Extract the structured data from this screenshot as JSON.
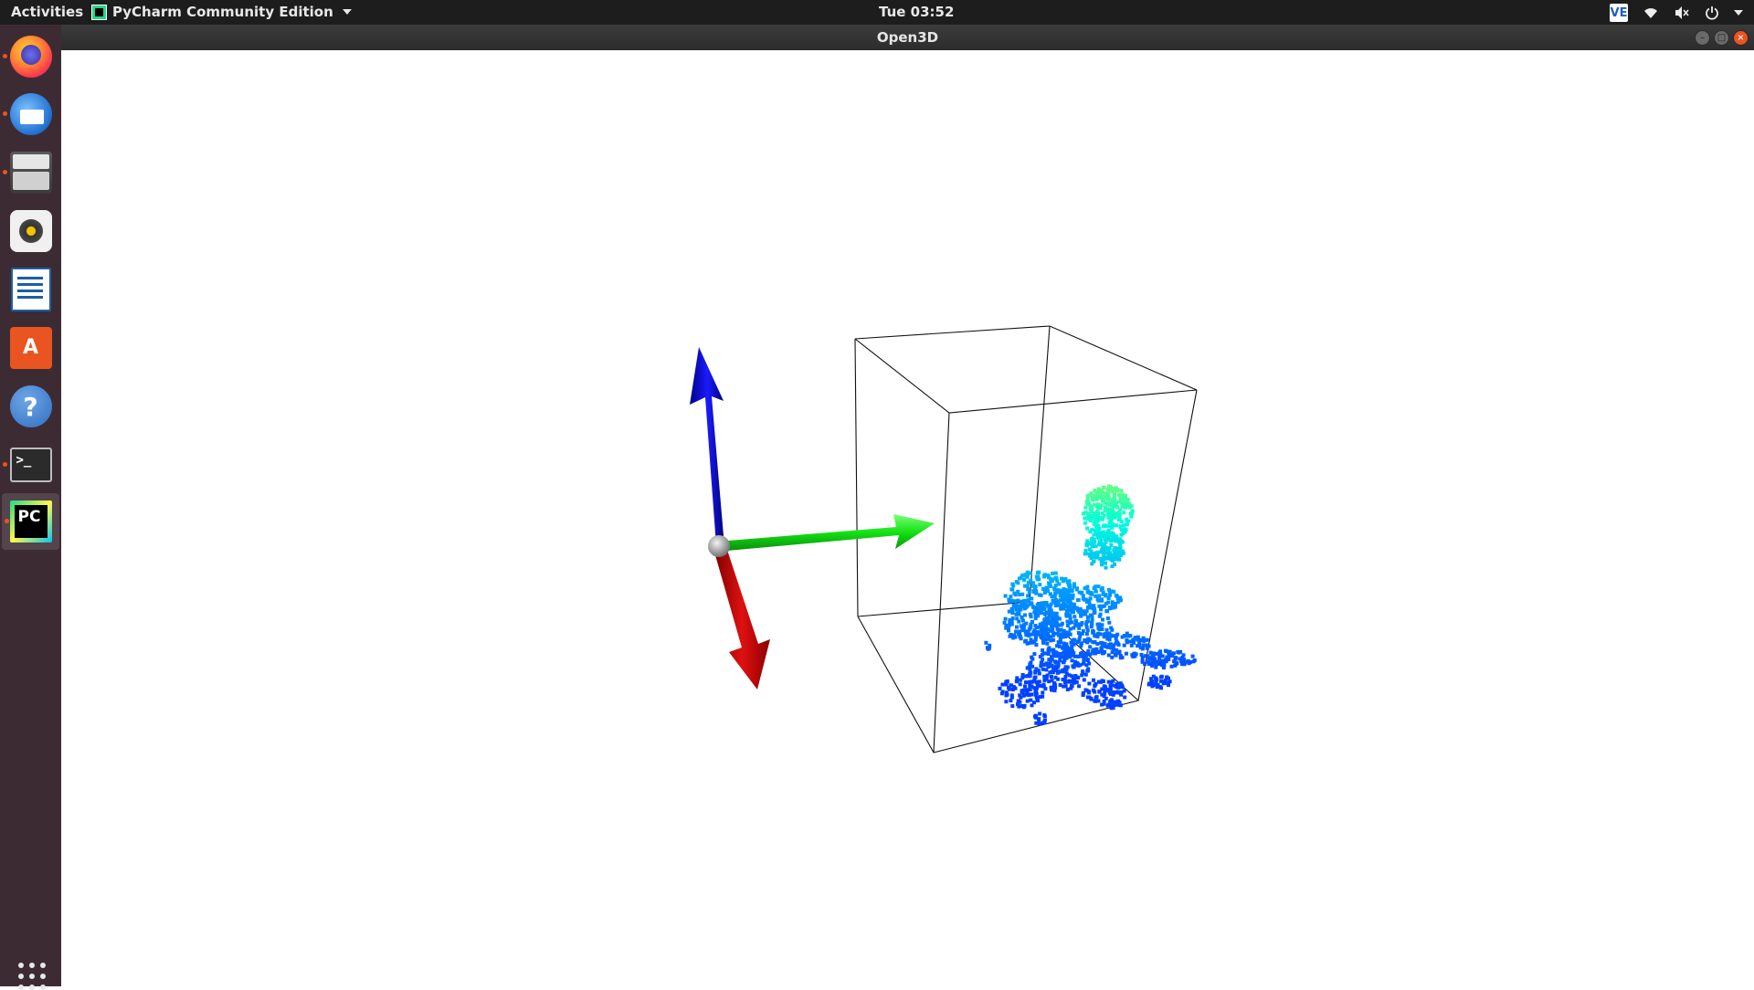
{
  "topbar": {
    "activities": "Activities",
    "app_name": "PyCharm Community Edition",
    "clock": "Tue 03:52",
    "tray_ve": "VE",
    "icons": [
      "network-icon",
      "volume-icon",
      "power-icon",
      "chevron-down-icon"
    ]
  },
  "window": {
    "title": "Open3D",
    "controls": [
      "minimize",
      "maximize",
      "close"
    ],
    "close_color": "#e95420"
  },
  "dock": {
    "apps": [
      "Firefox",
      "Thunderbird",
      "Files",
      "Rhythmbox",
      "LibreOffice Writer",
      "Ubuntu Software",
      "Help",
      "Terminal",
      "PyCharm Community Edition"
    ],
    "running": [
      "Firefox",
      "Thunderbird",
      "Files",
      "Terminal",
      "PyCharm Community Edition"
    ],
    "active": "PyCharm Community Edition",
    "background": "#3d2b33"
  },
  "scene": {
    "background": "#ffffff",
    "axis_colors": {
      "x": "#cc0000",
      "y": "#00dd00",
      "z": "#0000dd"
    },
    "bbox_color": "#000000",
    "point_cloud_colormap": [
      "#0040ff",
      "#00a0ff",
      "#00ffe0",
      "#ffff00"
    ]
  }
}
